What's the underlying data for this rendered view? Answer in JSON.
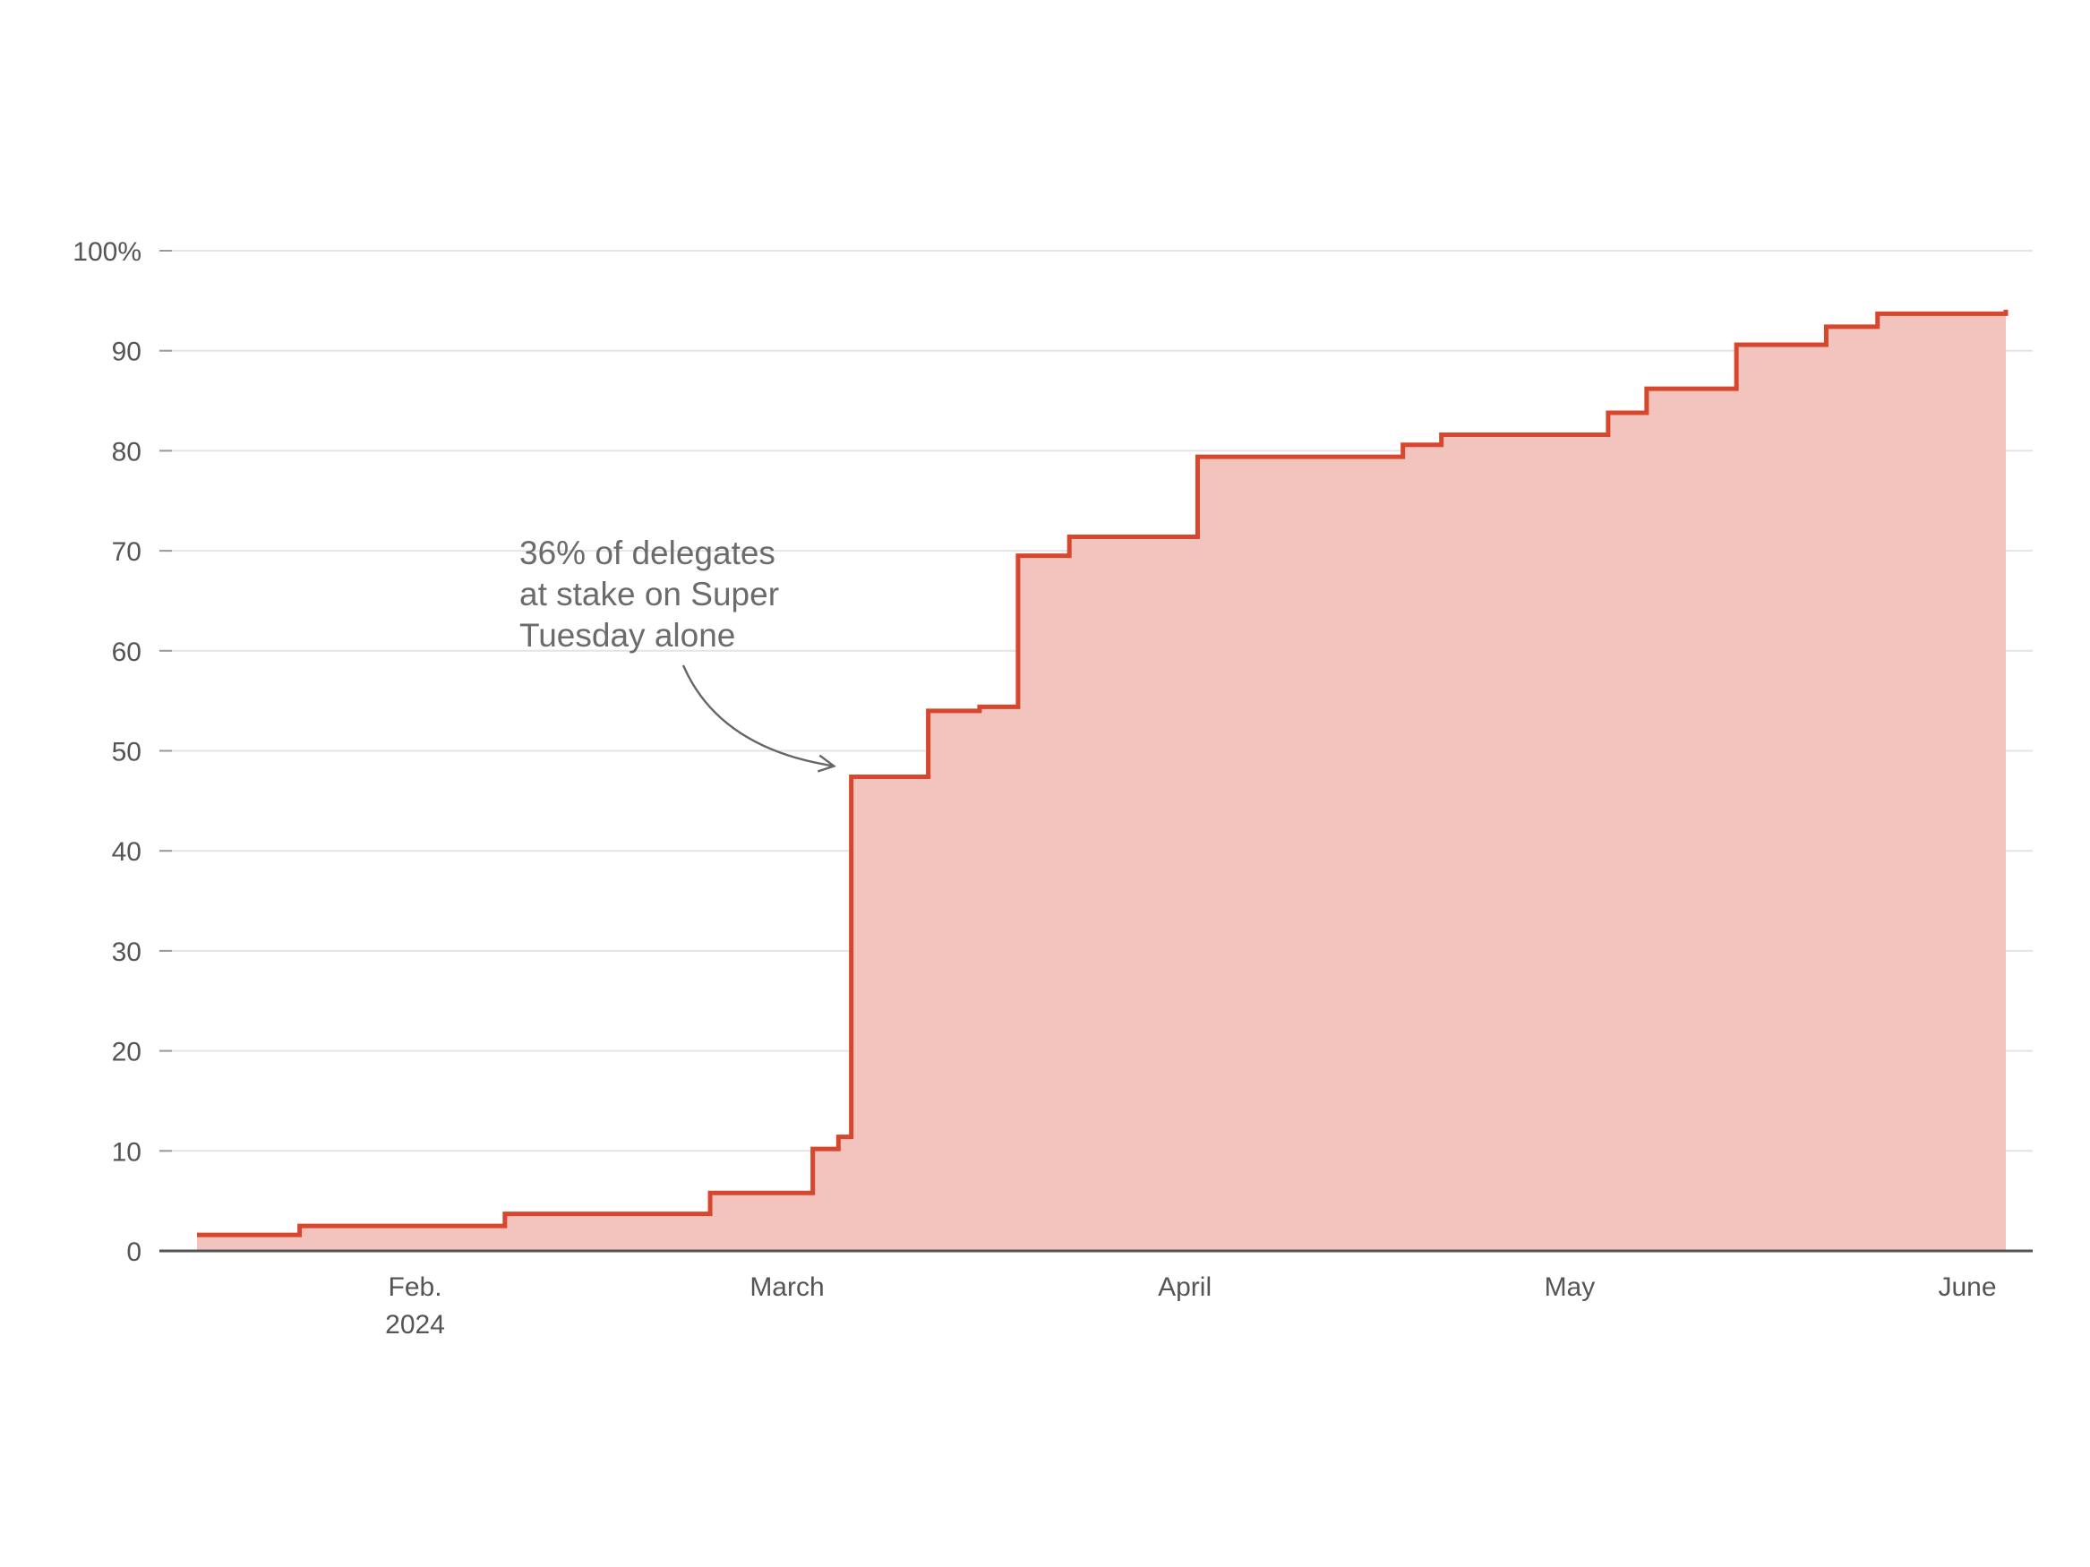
{
  "chart_data": {
    "type": "area",
    "step": true,
    "x_start": "2024-01-15",
    "x_end": "2024-06-04",
    "y_ticks": [
      0,
      10,
      20,
      30,
      40,
      50,
      60,
      70,
      80,
      90,
      100
    ],
    "y_tick_labels": [
      "0",
      "10",
      "20",
      "30",
      "40",
      "50",
      "60",
      "70",
      "80",
      "90",
      "100%"
    ],
    "ylim": [
      0,
      100
    ],
    "x_ticks": [
      {
        "date": "2024-02-01",
        "label": "Feb.",
        "sublabel": "2024"
      },
      {
        "date": "2024-03-01",
        "label": "March",
        "sublabel": ""
      },
      {
        "date": "2024-04-01",
        "label": "April",
        "sublabel": ""
      },
      {
        "date": "2024-05-01",
        "label": "May",
        "sublabel": ""
      },
      {
        "date": "2024-06-01",
        "label": "June",
        "sublabel": ""
      }
    ],
    "points": [
      {
        "x": "2024-01-15",
        "y": 1.6
      },
      {
        "x": "2024-01-23",
        "y": 2.5
      },
      {
        "x": "2024-02-08",
        "y": 3.7
      },
      {
        "x": "2024-02-24",
        "y": 5.8
      },
      {
        "x": "2024-03-03",
        "y": 10.2
      },
      {
        "x": "2024-03-05",
        "y": 11.4
      },
      {
        "x": "2024-03-06",
        "y": 47.4
      },
      {
        "x": "2024-03-12",
        "y": 54.0
      },
      {
        "x": "2024-03-16",
        "y": 54.4
      },
      {
        "x": "2024-03-19",
        "y": 69.5
      },
      {
        "x": "2024-03-23",
        "y": 71.4
      },
      {
        "x": "2024-04-02",
        "y": 79.4
      },
      {
        "x": "2024-04-18",
        "y": 80.6
      },
      {
        "x": "2024-04-21",
        "y": 81.6
      },
      {
        "x": "2024-05-04",
        "y": 83.8
      },
      {
        "x": "2024-05-07",
        "y": 86.2
      },
      {
        "x": "2024-05-14",
        "y": 90.6
      },
      {
        "x": "2024-05-21",
        "y": 92.4
      },
      {
        "x": "2024-05-25",
        "y": 93.7
      },
      {
        "x": "2024-06-04",
        "y": 94.1
      }
    ],
    "colors": {
      "line": "#d7472d",
      "fill": "#f3c4be"
    },
    "title": "",
    "xlabel": "",
    "ylabel": "",
    "grid": true,
    "annotations": [
      {
        "lines": [
          "36% of delegates",
          "at stake on Super",
          "Tuesday alone"
        ],
        "target_x": "2024-03-05",
        "target_y": 47.4
      }
    ]
  }
}
